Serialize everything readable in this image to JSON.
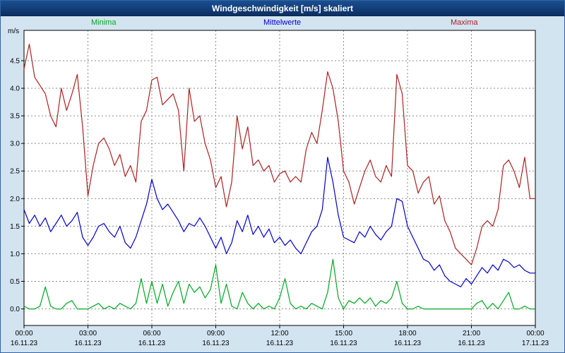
{
  "window": {
    "title": "Windgeschwindigkeit [m/s] skaliert"
  },
  "chart_data": {
    "type": "line",
    "title": "Windgeschwindigkeit [m/s] skaliert",
    "ylabel": "m/s",
    "xlabel": "",
    "grid": true,
    "legend_position": "top",
    "xlim": [
      0,
      24
    ],
    "ylim": [
      -0.3,
      5.05
    ],
    "yticks": [
      0,
      0.5,
      1,
      1.5,
      2,
      2.5,
      3,
      3.5,
      4,
      4.5
    ],
    "sample_interval_minutes": 15,
    "xticks": [
      {
        "hour": 0,
        "time": "00:00",
        "date": "16.11.23"
      },
      {
        "hour": 3,
        "time": "03:00",
        "date": "16.11.23"
      },
      {
        "hour": 6,
        "time": "06:00",
        "date": "16.11.23"
      },
      {
        "hour": 9,
        "time": "09:00",
        "date": "16.11.23"
      },
      {
        "hour": 12,
        "time": "12:00",
        "date": "16.11.23"
      },
      {
        "hour": 15,
        "time": "15:00",
        "date": "16.11.23"
      },
      {
        "hour": 18,
        "time": "18:00",
        "date": "16.11.23"
      },
      {
        "hour": 21,
        "time": "21:00",
        "date": "16.11.23"
      },
      {
        "hour": 24,
        "time": "00:00",
        "date": "17.11.23"
      }
    ],
    "series": [
      {
        "name": "Minima",
        "color": "#00a822",
        "values": [
          0.05,
          0.0,
          0.0,
          0.05,
          0.4,
          0.05,
          0.0,
          0.0,
          0.1,
          0.15,
          0.0,
          0.0,
          0.0,
          0.05,
          0.1,
          0.0,
          0.05,
          0.0,
          0.1,
          0.05,
          0.0,
          0.1,
          0.55,
          0.1,
          0.5,
          0.1,
          0.45,
          0.05,
          0.3,
          0.5,
          0.1,
          0.45,
          0.3,
          0.4,
          0.2,
          0.35,
          0.8,
          0.1,
          0.45,
          0.05,
          0.0,
          0.3,
          0.1,
          0.0,
          0.1,
          0.0,
          0.05,
          0.0,
          0.2,
          0.55,
          0.1,
          0.0,
          0.05,
          0.0,
          0.1,
          0.05,
          0.0,
          0.3,
          0.9,
          0.2,
          0.0,
          0.15,
          0.1,
          0.2,
          0.1,
          0.2,
          0.05,
          0.15,
          0.1,
          0.2,
          0.5,
          0.1,
          0.0,
          0.0,
          0.05,
          0.0,
          0.0,
          0.0,
          0.0,
          0.0,
          0.0,
          0.0,
          0.0,
          0.0,
          0.0,
          0.1,
          0.15,
          0.0,
          0.1,
          0.0,
          0.15,
          0.3,
          0.0,
          0.0,
          0.05,
          0.0,
          0.0
        ]
      },
      {
        "name": "Mittelwerte",
        "color": "#0000cc",
        "values": [
          1.8,
          1.55,
          1.7,
          1.5,
          1.65,
          1.4,
          1.55,
          1.7,
          1.5,
          1.6,
          1.75,
          1.3,
          1.15,
          1.3,
          1.5,
          1.55,
          1.4,
          1.3,
          1.5,
          1.2,
          1.1,
          1.3,
          1.6,
          1.9,
          2.35,
          2.0,
          1.8,
          1.9,
          1.75,
          1.6,
          1.4,
          1.55,
          1.5,
          1.65,
          1.5,
          1.3,
          1.1,
          1.3,
          1.0,
          1.2,
          1.6,
          1.4,
          1.7,
          1.35,
          1.5,
          1.3,
          1.45,
          1.2,
          1.3,
          1.15,
          1.25,
          1.1,
          1.0,
          1.2,
          1.4,
          1.5,
          1.8,
          2.75,
          2.3,
          1.7,
          1.3,
          1.25,
          1.2,
          1.4,
          1.3,
          1.5,
          1.35,
          1.25,
          1.4,
          1.5,
          2.0,
          1.95,
          1.5,
          1.3,
          1.1,
          0.9,
          0.85,
          0.7,
          0.8,
          0.6,
          0.5,
          0.45,
          0.4,
          0.55,
          0.45,
          0.6,
          0.75,
          0.65,
          0.8,
          0.7,
          0.9,
          0.85,
          0.75,
          0.8,
          0.7,
          0.65,
          0.65
        ]
      },
      {
        "name": "Maxima",
        "color": "#aa2222",
        "values": [
          4.35,
          4.8,
          4.2,
          4.05,
          3.9,
          3.5,
          3.3,
          4.0,
          3.6,
          3.9,
          4.25,
          3.3,
          2.05,
          2.6,
          3.0,
          3.1,
          2.9,
          2.6,
          2.8,
          2.4,
          2.6,
          2.3,
          3.4,
          3.6,
          4.15,
          4.2,
          3.7,
          3.8,
          3.9,
          3.6,
          2.5,
          4.0,
          3.4,
          3.5,
          3.0,
          2.7,
          2.2,
          2.4,
          1.85,
          2.3,
          3.5,
          2.9,
          3.3,
          2.6,
          2.7,
          2.5,
          2.6,
          2.3,
          2.45,
          2.5,
          2.3,
          2.4,
          2.3,
          2.9,
          3.2,
          3.0,
          3.6,
          4.3,
          4.0,
          3.4,
          2.5,
          2.3,
          1.9,
          2.2,
          2.5,
          2.7,
          2.4,
          2.3,
          2.6,
          2.4,
          4.25,
          3.9,
          2.6,
          2.5,
          2.1,
          2.3,
          2.4,
          1.9,
          2.05,
          1.6,
          1.4,
          1.1,
          1.0,
          0.9,
          0.8,
          1.1,
          1.5,
          1.6,
          1.5,
          1.8,
          2.6,
          2.7,
          2.5,
          2.2,
          2.75,
          2.0,
          2.0
        ]
      }
    ]
  }
}
